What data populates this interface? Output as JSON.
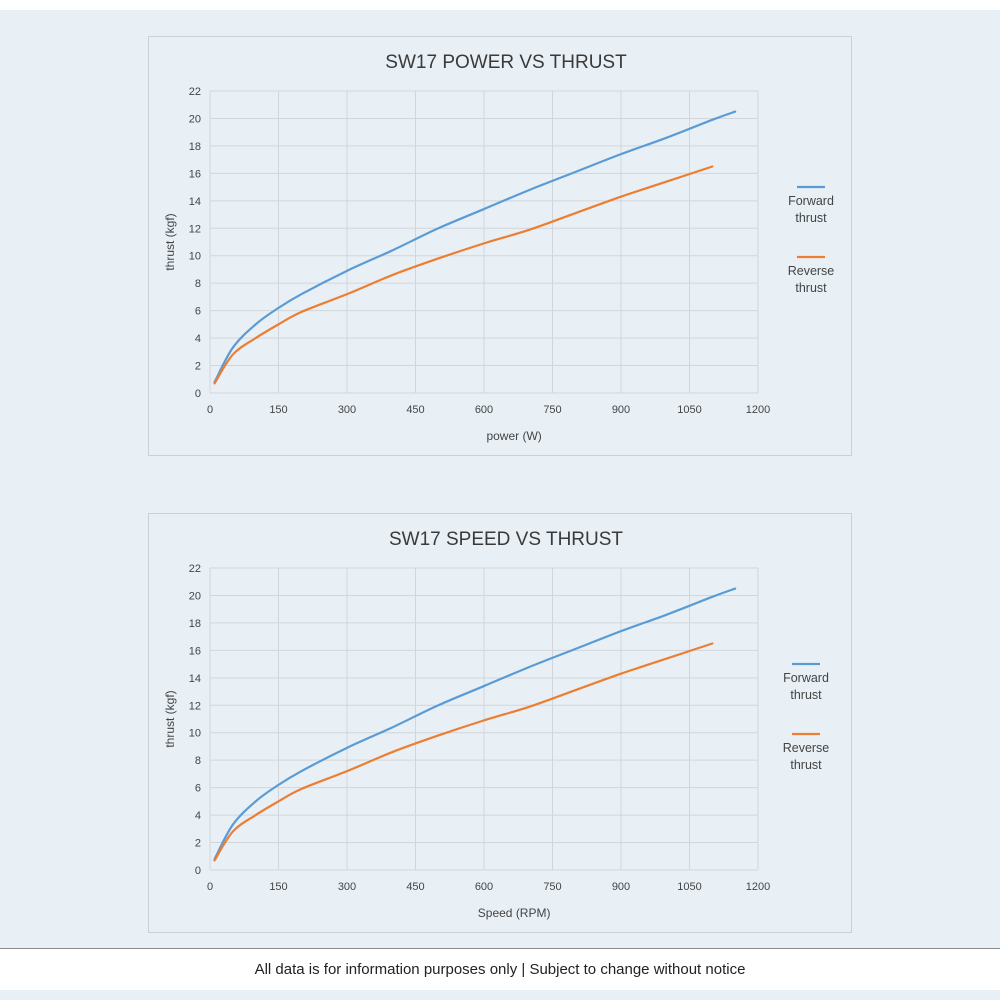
{
  "footer": {
    "note": "All data is for information purposes only | Subject to change without notice"
  },
  "colors": {
    "forward": "#5b9bd5",
    "reverse": "#ed7d31",
    "grid": "#d2d6da",
    "background": "#e8f0f6"
  },
  "chart_data": [
    {
      "type": "line",
      "title": "SW17 POWER VS THRUST",
      "xlabel": "power (W)",
      "ylabel": "thrust (kgf)",
      "xlim": [
        0,
        1200
      ],
      "ylim": [
        0,
        22
      ],
      "xticks": [
        0,
        150,
        300,
        450,
        600,
        750,
        900,
        1050,
        1200
      ],
      "yticks": [
        0,
        2,
        4,
        6,
        8,
        10,
        12,
        14,
        16,
        18,
        20,
        22
      ],
      "grid": true,
      "legend_position": "right",
      "series": [
        {
          "name": "Forward\nthrust",
          "color_key": "forward",
          "x": [
            10,
            50,
            100,
            150,
            200,
            300,
            400,
            500,
            600,
            700,
            800,
            900,
            1000,
            1100,
            1150
          ],
          "y": [
            0.8,
            3.3,
            5.0,
            6.2,
            7.2,
            8.9,
            10.4,
            12.0,
            13.4,
            14.8,
            16.1,
            17.4,
            18.6,
            19.9,
            20.5
          ]
        },
        {
          "name": "Reverse\nthrust",
          "color_key": "reverse",
          "x": [
            10,
            50,
            100,
            150,
            200,
            300,
            400,
            500,
            600,
            700,
            800,
            900,
            1000,
            1100
          ],
          "y": [
            0.7,
            2.8,
            4.0,
            5.0,
            5.9,
            7.2,
            8.6,
            9.8,
            10.9,
            11.9,
            13.1,
            14.3,
            15.4,
            16.5
          ]
        }
      ]
    },
    {
      "type": "line",
      "title": "SW17 SPEED VS THRUST",
      "xlabel": "Speed (RPM)",
      "ylabel": "thrust (kgf)",
      "xlim": [
        0,
        1200
      ],
      "ylim": [
        0,
        22
      ],
      "xticks": [
        0,
        150,
        300,
        450,
        600,
        750,
        900,
        1050,
        1200
      ],
      "yticks": [
        0,
        2,
        4,
        6,
        8,
        10,
        12,
        14,
        16,
        18,
        20,
        22
      ],
      "grid": true,
      "legend_position": "right",
      "series": [
        {
          "name": "Forward\nthrust",
          "color_key": "forward",
          "x": [
            10,
            50,
            100,
            150,
            200,
            300,
            400,
            500,
            600,
            700,
            800,
            900,
            1000,
            1100,
            1150
          ],
          "y": [
            0.8,
            3.3,
            5.0,
            6.2,
            7.2,
            8.9,
            10.4,
            12.0,
            13.4,
            14.8,
            16.1,
            17.4,
            18.6,
            19.9,
            20.5
          ]
        },
        {
          "name": "Reverse\nthrust",
          "color_key": "reverse",
          "x": [
            10,
            50,
            100,
            150,
            200,
            300,
            400,
            500,
            600,
            700,
            800,
            900,
            1000,
            1100
          ],
          "y": [
            0.7,
            2.8,
            4.0,
            5.0,
            5.9,
            7.2,
            8.6,
            9.8,
            10.9,
            11.9,
            13.1,
            14.3,
            15.4,
            16.5
          ]
        }
      ]
    }
  ]
}
